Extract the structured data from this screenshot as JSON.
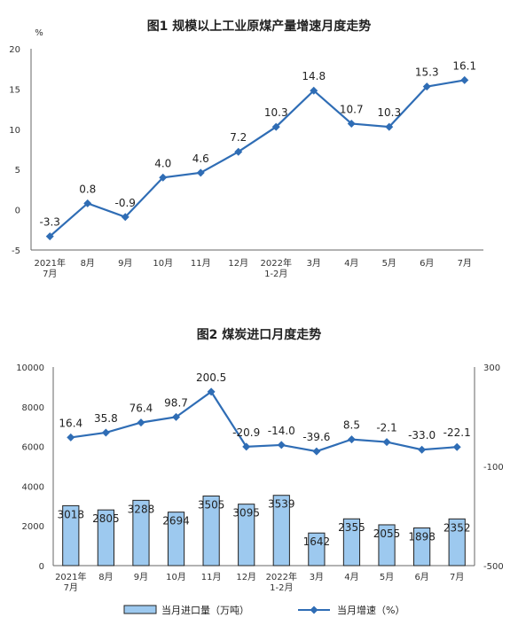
{
  "chart_data": [
    {
      "type": "line",
      "title": "图1  规模以上工业原煤产量增速月度走势",
      "ylabel": "%",
      "ylim": [
        -5,
        20
      ],
      "yticks": [
        -5,
        0,
        5,
        10,
        15,
        20
      ],
      "categories": [
        [
          "2021年",
          "7月"
        ],
        [
          "8月"
        ],
        [
          "9月"
        ],
        [
          "10月"
        ],
        [
          "11月"
        ],
        [
          "12月"
        ],
        [
          "2022年",
          "1-2月"
        ],
        [
          "3月"
        ],
        [
          "4月"
        ],
        [
          "5月"
        ],
        [
          "6月"
        ],
        [
          "7月"
        ]
      ],
      "series": [
        {
          "values": [
            -3.3,
            0.8,
            -0.9,
            4.0,
            4.6,
            7.2,
            10.3,
            14.8,
            10.7,
            10.3,
            15.3,
            16.1
          ],
          "labels": [
            "-3.3",
            "0.8",
            "-0.9",
            "4.0",
            "4.6",
            "7.2",
            "10.3",
            "14.8",
            "10.7",
            "10.3",
            "15.3",
            "16.1"
          ],
          "color": "#2f6db5"
        }
      ],
      "grid": false
    },
    {
      "type": "bar+line",
      "title": "图2  煤炭进口月度走势",
      "categories": [
        [
          "2021年",
          "7月"
        ],
        [
          "8月"
        ],
        [
          "9月"
        ],
        [
          "10月"
        ],
        [
          "11月"
        ],
        [
          "12月"
        ],
        [
          "2022年",
          "1-2月"
        ],
        [
          "3月"
        ],
        [
          "4月"
        ],
        [
          "5月"
        ],
        [
          "6月"
        ],
        [
          "7月"
        ]
      ],
      "y_left": {
        "ylim": [
          0,
          10000
        ],
        "ticks": [
          0,
          2000,
          4000,
          6000,
          8000,
          10000
        ]
      },
      "y_right": {
        "ylim": [
          -500,
          300
        ],
        "ticks": [
          -500,
          -100,
          300
        ]
      },
      "series": [
        {
          "name": "当月进口量（万吨）",
          "kind": "bar",
          "axis": "left",
          "values": [
            3018,
            2805,
            3288,
            2694,
            3505,
            3095,
            3539,
            1642,
            2355,
            2055,
            1898,
            2352
          ],
          "labels": [
            "3018",
            "2805",
            "3288",
            "2694",
            "3505",
            "3095",
            "3539",
            "1642",
            "2355",
            "2055",
            "1898",
            "2352"
          ],
          "color": "#9dc9ef",
          "edge": "#222222"
        },
        {
          "name": "当月增速（%）",
          "kind": "line",
          "axis": "right",
          "values": [
            16.4,
            35.8,
            76.4,
            98.7,
            200.5,
            -20.9,
            -14.0,
            -39.6,
            8.5,
            -2.1,
            -33.0,
            -22.1
          ],
          "labels": [
            "16.4",
            "35.8",
            "76.4",
            "98.7",
            "200.5",
            "-20.9",
            "-14.0",
            "-39.6",
            "8.5",
            "-2.1",
            "-33.0",
            "-22.1"
          ],
          "color": "#2f6db5"
        }
      ],
      "legend_position": "bottom",
      "grid": false
    }
  ]
}
